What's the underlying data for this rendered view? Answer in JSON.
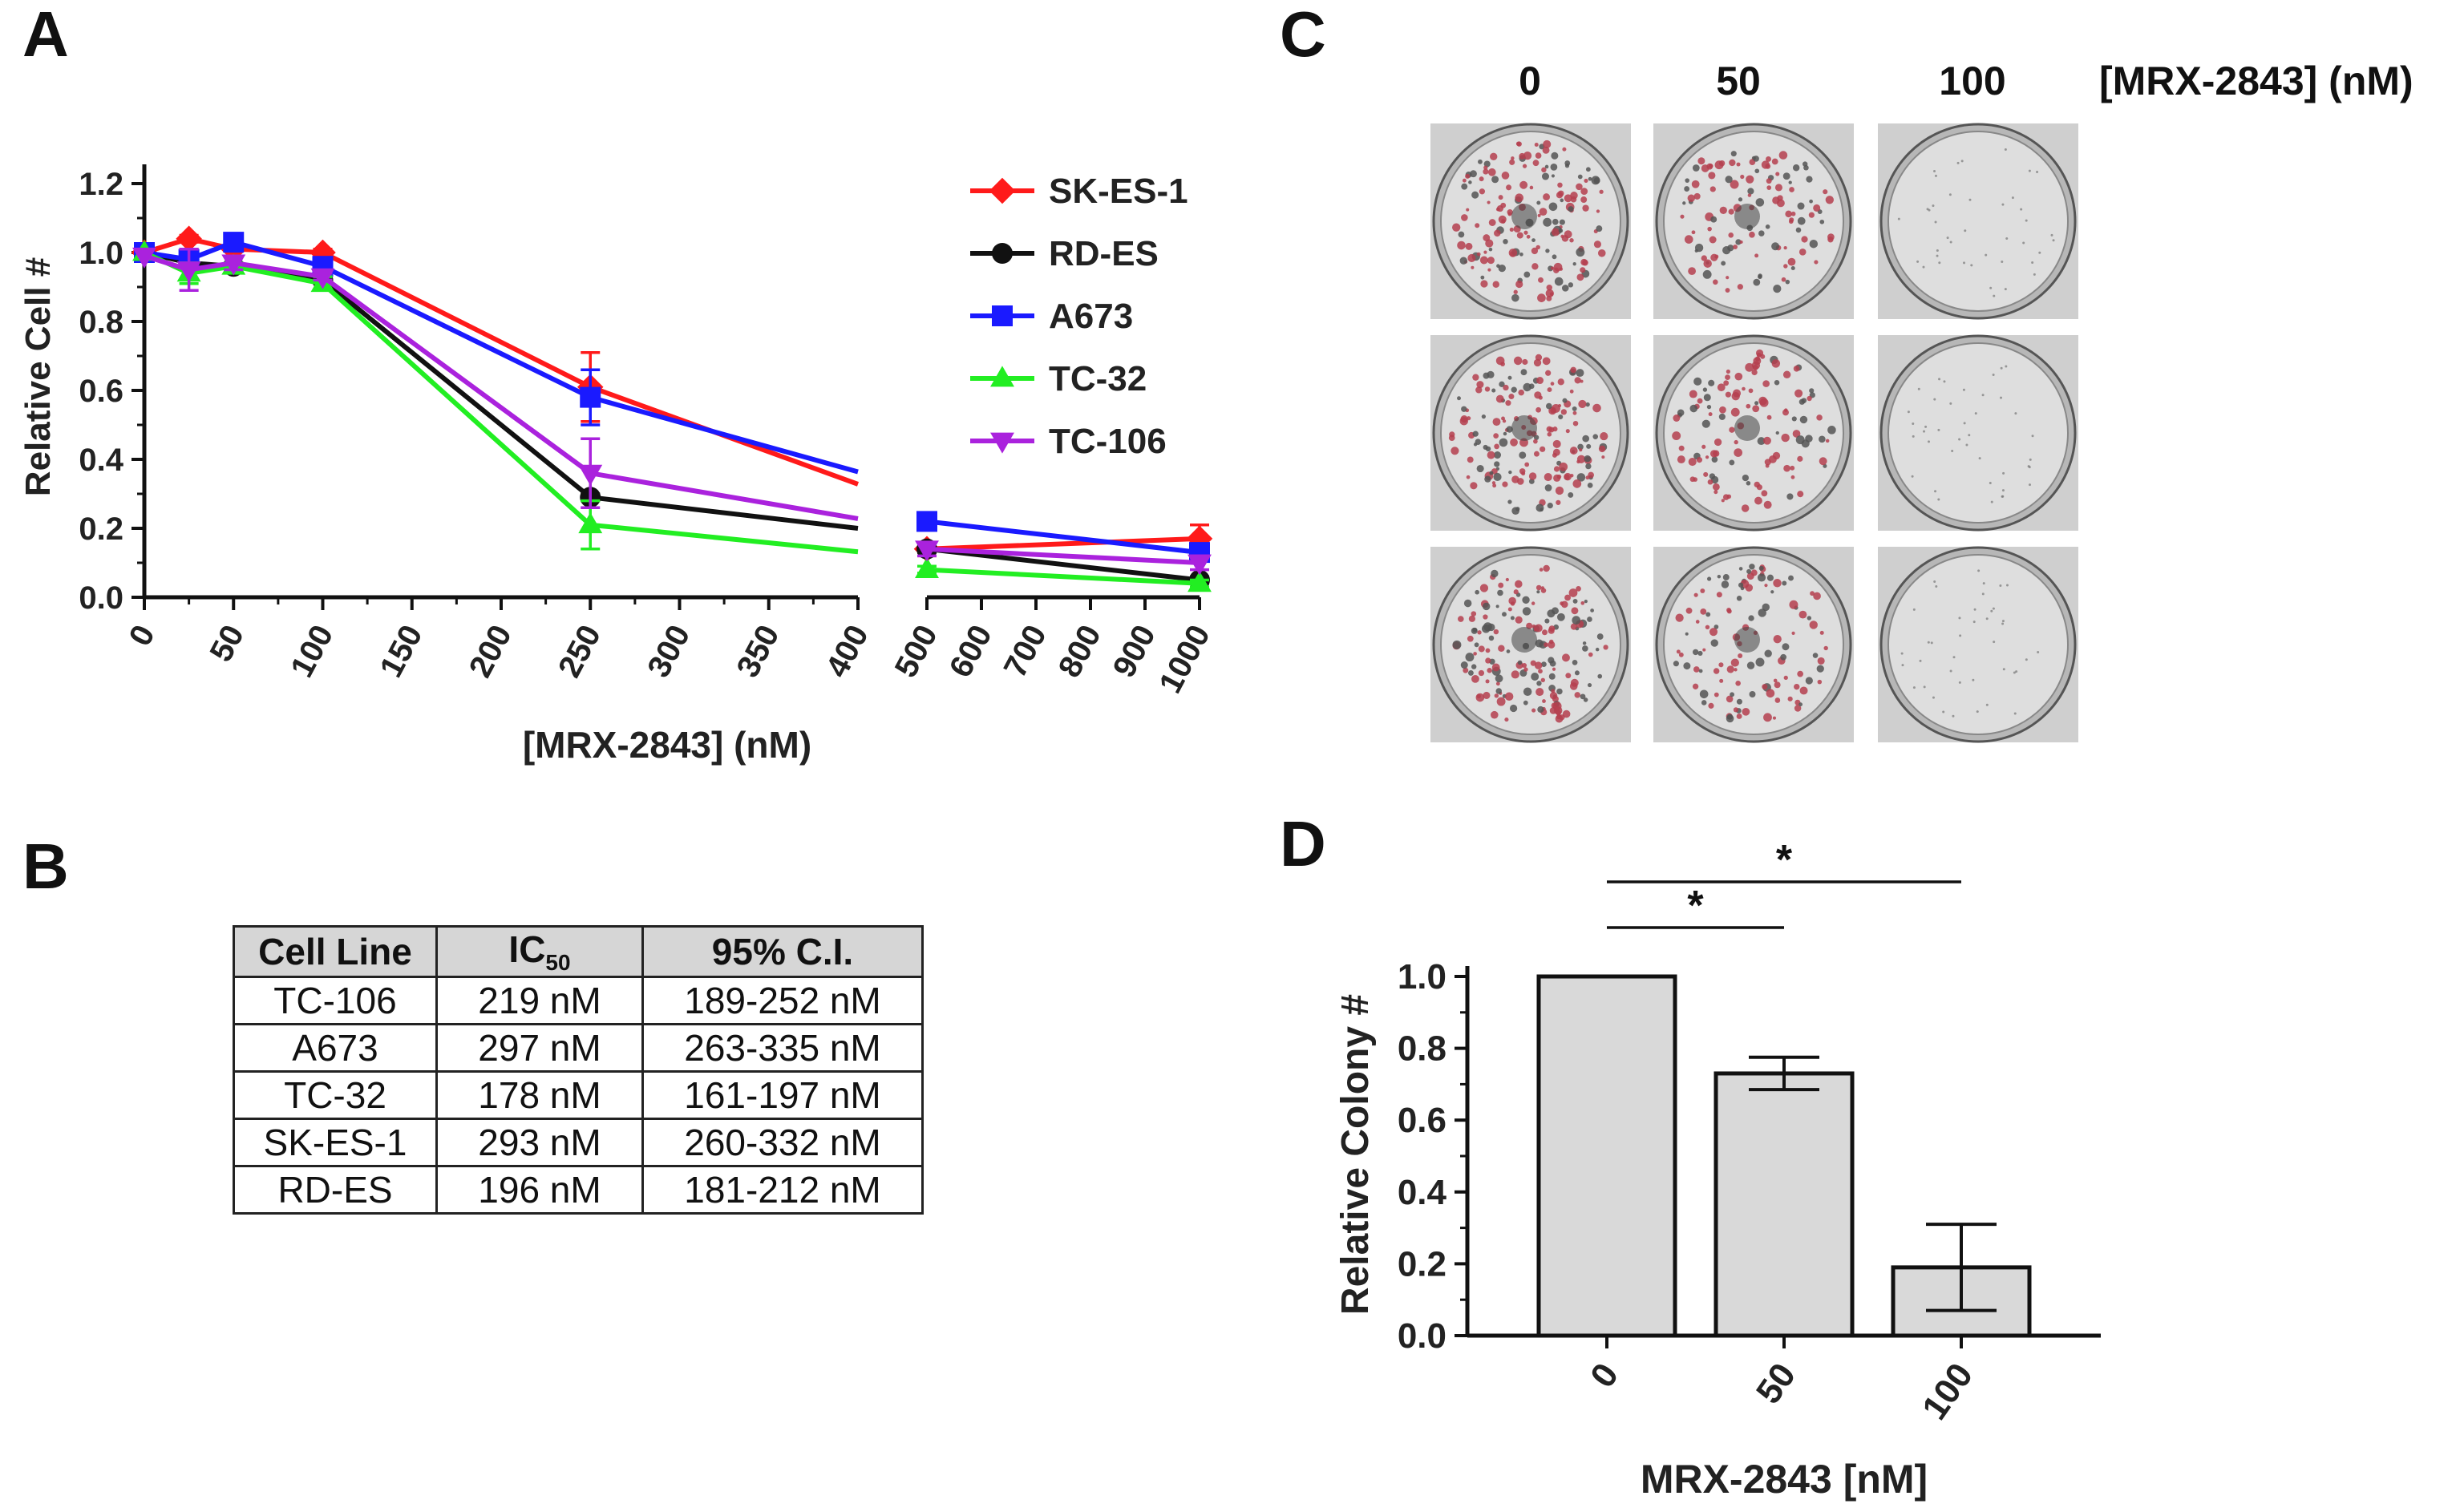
{
  "panel_labels": {
    "a": "A",
    "b": "B",
    "c": "C",
    "d": "D"
  },
  "colors": {
    "SK-ES-1": "#ff1a1a",
    "RD-ES": "#111111",
    "A673": "#1a1aff",
    "TC-32": "#22ee22",
    "TC-106": "#aa22dd",
    "bar_fill": "#d9d9d9"
  },
  "chart_data": [
    {
      "id": "A",
      "type": "line",
      "title": "",
      "xlabel": "[MRX-2843] (nM)",
      "ylabel": "Relative Cell #",
      "ylim": [
        0,
        1.2
      ],
      "yticks": [
        "0.0",
        "0.2",
        "0.4",
        "0.6",
        "0.8",
        "1.0",
        "1.2"
      ],
      "xticks_segment1": [
        "0",
        "50",
        "100",
        "150",
        "200",
        "250",
        "300",
        "350",
        "400"
      ],
      "xticks_segment2": [
        "500",
        "600",
        "700",
        "800",
        "900",
        "1000"
      ],
      "x_axis_break": true,
      "x": [
        0,
        25,
        50,
        100,
        250,
        500,
        1000
      ],
      "legend": "top-right",
      "series": [
        {
          "name": "SK-ES-1",
          "marker": "diamond",
          "values": [
            1.0,
            1.04,
            1.01,
            1.0,
            0.61,
            0.14,
            0.17
          ],
          "err": [
            0,
            0.01,
            0.02,
            0.01,
            0.1,
            0.02,
            0.04
          ]
        },
        {
          "name": "RD-ES",
          "marker": "circle",
          "values": [
            1.0,
            0.97,
            0.96,
            0.92,
            0.29,
            0.14,
            0.05
          ],
          "err": [
            0,
            0.01,
            0.01,
            0.01,
            0.01,
            0.01,
            0.01
          ]
        },
        {
          "name": "A673",
          "marker": "square",
          "values": [
            1.0,
            0.98,
            1.03,
            0.96,
            0.58,
            0.22,
            0.13
          ],
          "err": [
            0,
            0.03,
            0.02,
            0.02,
            0.08,
            0.02,
            0.02
          ]
        },
        {
          "name": "TC-32",
          "marker": "triangle-up",
          "values": [
            1.0,
            0.94,
            0.96,
            0.91,
            0.21,
            0.08,
            0.04
          ],
          "err": [
            0,
            0.03,
            0.01,
            0.02,
            0.07,
            0.01,
            0.01
          ]
        },
        {
          "name": "TC-106",
          "marker": "triangle-down",
          "values": [
            0.99,
            0.95,
            0.97,
            0.93,
            0.36,
            0.14,
            0.1
          ],
          "err": [
            0,
            0.06,
            0.02,
            0.01,
            0.1,
            0.02,
            0.02
          ]
        }
      ]
    },
    {
      "id": "B",
      "type": "table",
      "columns": [
        "Cell Line",
        "IC",
        "50",
        "95% C.I."
      ],
      "rows": [
        [
          "TC-106",
          "219 nM",
          "189-252 nM"
        ],
        [
          "A673",
          "297 nM",
          "263-335 nM"
        ],
        [
          "TC-32",
          "178 nM",
          "161-197 nM"
        ],
        [
          "SK-ES-1",
          "293 nM",
          "260-332 nM"
        ],
        [
          "RD-ES",
          "196 nM",
          "181-212 nM"
        ]
      ]
    },
    {
      "id": "C",
      "type": "image-grid",
      "column_labels": [
        "0",
        "50",
        "100"
      ],
      "unit_label": "[MRX-2843] (nM)",
      "rows": 3,
      "colony_density": [
        1.0,
        0.7,
        0.0
      ]
    },
    {
      "id": "D",
      "type": "bar",
      "categories": [
        "0",
        "50",
        "100"
      ],
      "values": [
        1.0,
        0.73,
        0.19
      ],
      "err": [
        0,
        0.045,
        0.12
      ],
      "xlabel": "MRX-2843 [nM]",
      "ylabel": "Relative Colony #",
      "ylim": [
        0,
        1.0
      ],
      "yticks": [
        "0.0",
        "0.2",
        "0.4",
        "0.6",
        "0.8",
        "1.0"
      ],
      "significance": [
        {
          "from": "0",
          "to": "50",
          "label": "*"
        },
        {
          "from": "0",
          "to": "100",
          "label": "*"
        }
      ]
    }
  ]
}
